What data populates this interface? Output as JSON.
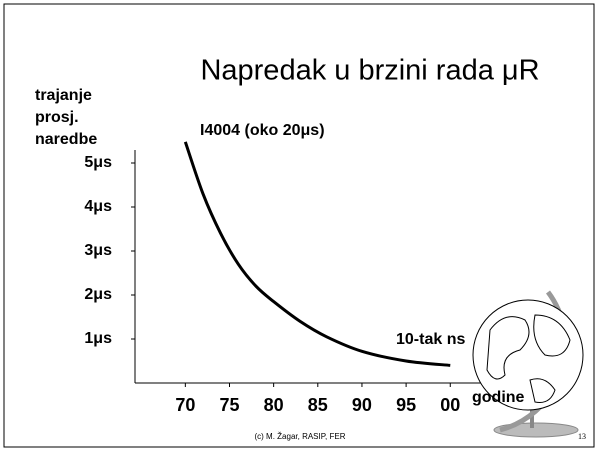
{
  "chart_data": {
    "type": "line",
    "title": "Napredak u brzini rada μR",
    "y_label": [
      "trajanje",
      "prosj.",
      "naredbe"
    ],
    "x_label": "godine",
    "annotations": [
      "I4004 (oko 20μs)",
      "10-tak ns"
    ],
    "footer": "(c) M. Žagar, RASIP, FER",
    "page_number": "13",
    "x": [
      70,
      72,
      74,
      76,
      78,
      80,
      83,
      86,
      90,
      95,
      100
    ],
    "values": [
      5.48,
      4.3,
      3.4,
      2.7,
      2.2,
      1.85,
      1.4,
      1.05,
      0.72,
      0.5,
      0.4
    ],
    "color": "#000000",
    "xlim": [
      64.3,
      104.5
    ],
    "xticks": [
      70,
      75,
      80,
      85,
      90,
      95,
      {
        "value": 100,
        "label": "00"
      }
    ],
    "ylim": [
      0,
      5.5
    ],
    "yticks": [
      {
        "value": 1,
        "label": "1μs"
      },
      {
        "value": 2,
        "label": "2μs"
      },
      {
        "value": 3,
        "label": "3μs"
      },
      {
        "value": 4,
        "label": "4μs"
      },
      {
        "value": 5,
        "label": "5μs"
      }
    ]
  }
}
